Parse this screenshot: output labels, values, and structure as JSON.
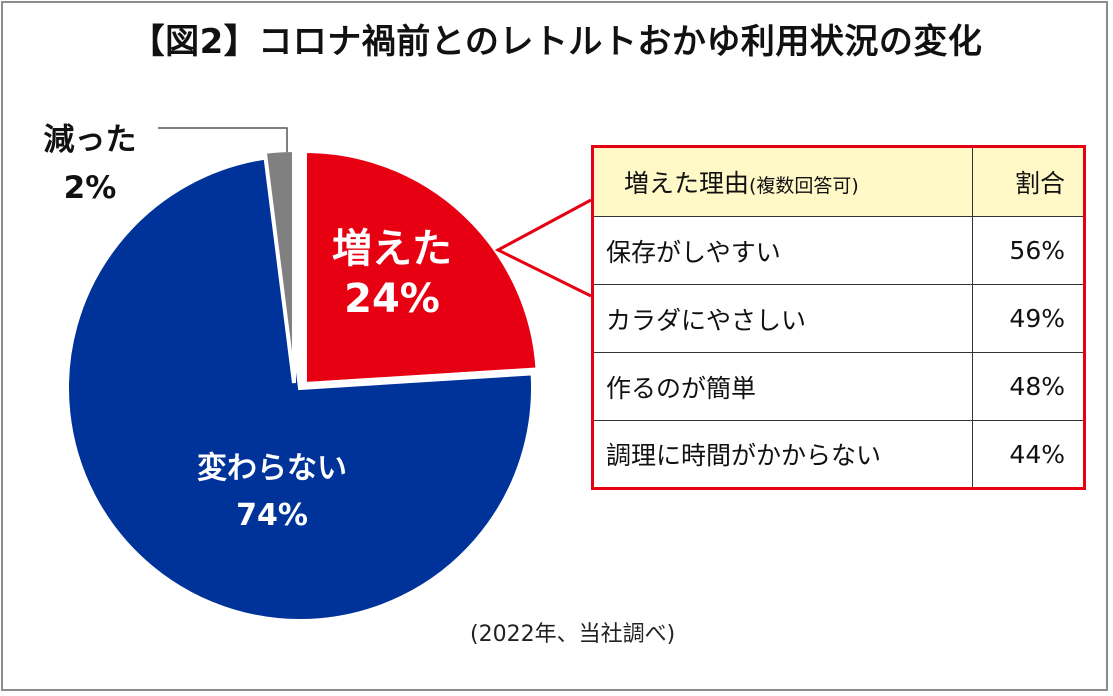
{
  "title": "【図2】コロナ禍前とのレトルトおかゆ利用状況の変化",
  "source_note": "(2022年、当社調べ)",
  "chart_data": {
    "type": "pie",
    "title": "【図2】コロナ禍前とのレトルトおかゆ利用状況の変化",
    "slices": [
      {
        "label": "増えた",
        "value": 24,
        "display": "24%",
        "color": "#e60012"
      },
      {
        "label": "変わらない",
        "value": 74,
        "display": "74%",
        "color": "#003399"
      },
      {
        "label": "減った",
        "value": 2,
        "display": "2%",
        "color": "#808080"
      }
    ]
  },
  "reasons_table": {
    "header": {
      "reason": "増えた理由",
      "note": "(複数回答可)",
      "ratio": "割合"
    },
    "rows": [
      {
        "reason": "保存がしやすい",
        "ratio": "56%"
      },
      {
        "reason": "カラダにやさしい",
        "ratio": "49%"
      },
      {
        "reason": "作るのが簡単",
        "ratio": "48%"
      },
      {
        "reason": "調理に時間がかからない",
        "ratio": "44%"
      }
    ]
  }
}
